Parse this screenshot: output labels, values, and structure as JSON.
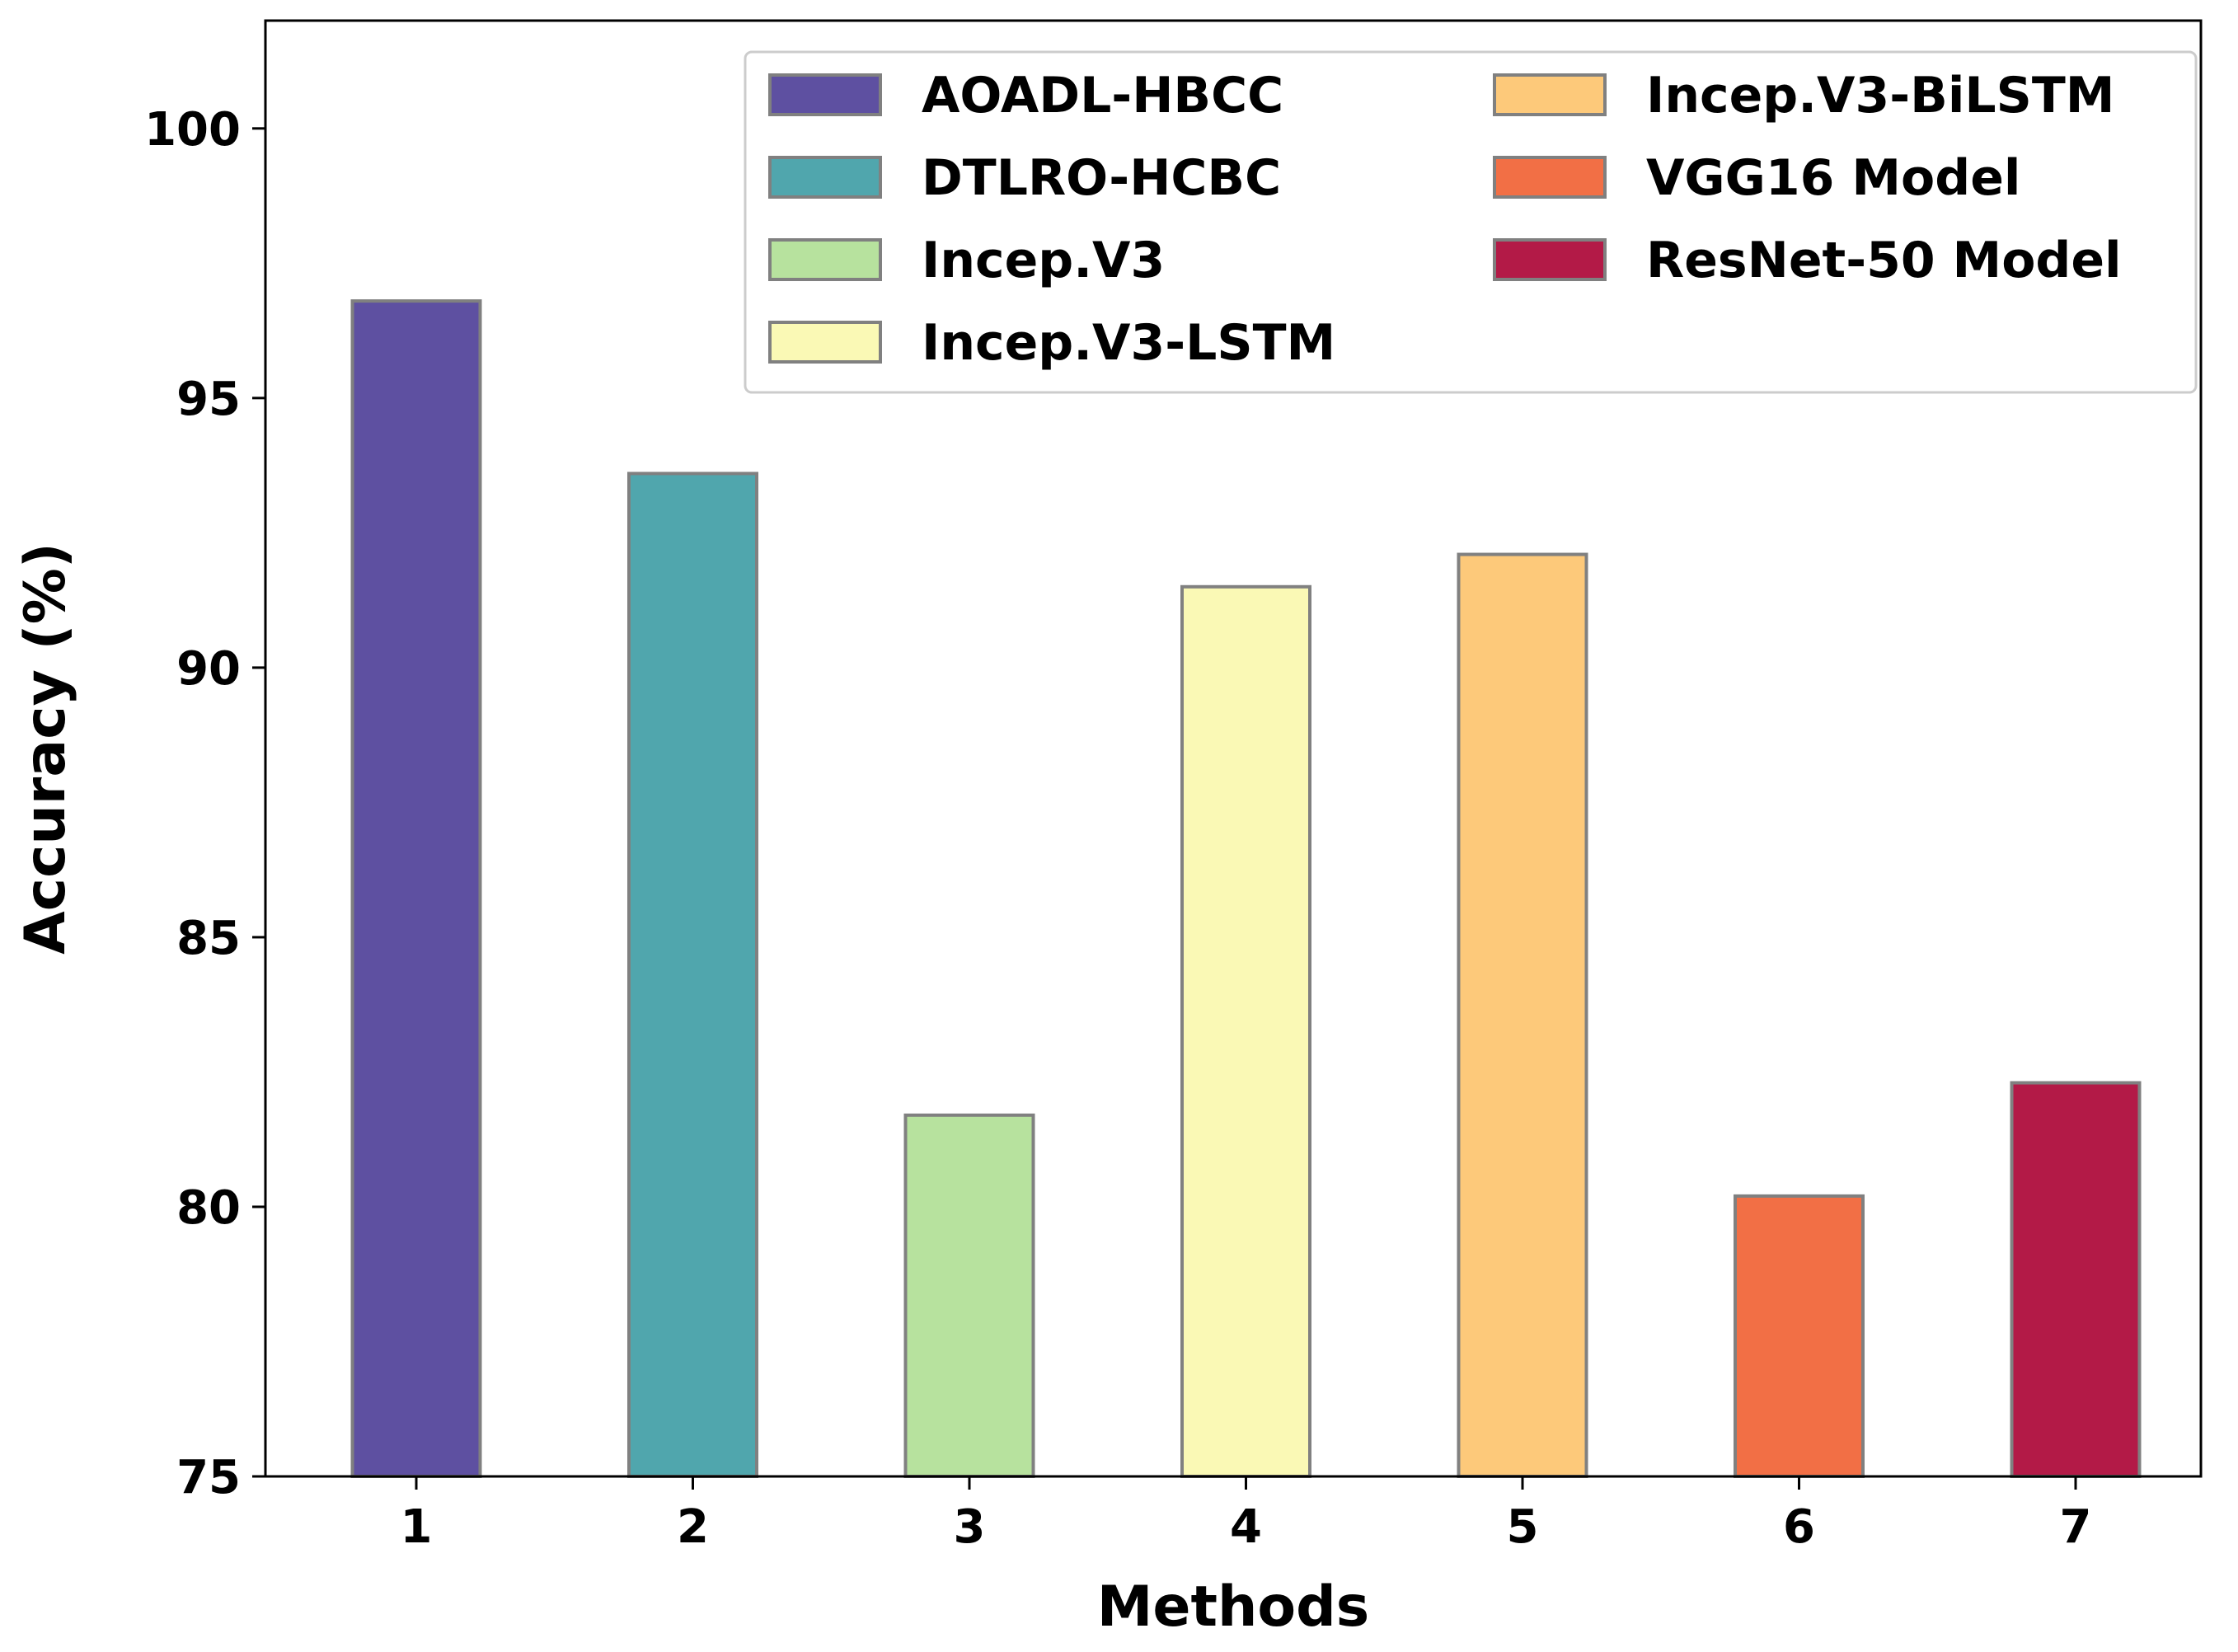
{
  "chart_data": {
    "type": "bar",
    "title": "",
    "xlabel": "Methods",
    "ylabel": "Accuracy (%)",
    "ylim": [
      75,
      102
    ],
    "yticks": [
      75,
      80,
      85,
      90,
      95,
      100
    ],
    "grid": false,
    "legend_position": "top-right",
    "categories": [
      "1",
      "2",
      "3",
      "4",
      "5",
      "6",
      "7"
    ],
    "series": [
      {
        "name": "AOADL-HBCC",
        "category": "1",
        "value": 96.8,
        "color": "#5E50A1"
      },
      {
        "name": "DTLRO-HCBC",
        "category": "2",
        "value": 93.6,
        "color": "#50A6AD"
      },
      {
        "name": "Incep.V3",
        "category": "3",
        "value": 81.7,
        "color": "#B7E29E"
      },
      {
        "name": "Incep.V3-LSTM",
        "category": "4",
        "value": 91.5,
        "color": "#FAF9B5"
      },
      {
        "name": "Incep.V3-BiLSTM",
        "category": "5",
        "value": 92.1,
        "color": "#FDC97A"
      },
      {
        "name": "VGG16 Model",
        "category": "6",
        "value": 80.2,
        "color": "#F26F45"
      },
      {
        "name": "ResNet-50 Model",
        "category": "7",
        "value": 82.3,
        "color": "#B31A47"
      }
    ]
  }
}
